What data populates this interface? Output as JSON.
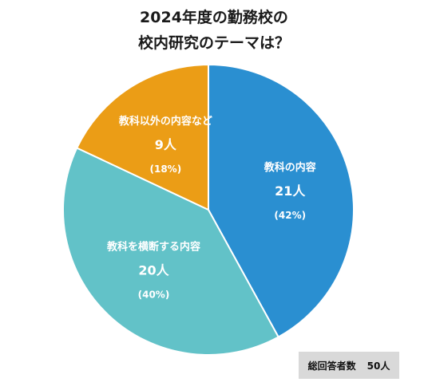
{
  "chart_data": {
    "type": "pie",
    "title": [
      "2024年度の勤務校の",
      "校内研究のテーマは？"
    ],
    "slices": [
      {
        "label": "教科の内容",
        "count": "21人",
        "percent_label": "(42%)",
        "value": 42,
        "color": "#2a8fd1"
      },
      {
        "label": "教科を横断する内容",
        "count": "20人",
        "percent_label": "(40%)",
        "value": 40,
        "color": "#62c2c8"
      },
      {
        "label": "教科以外の内容など",
        "count": "9人",
        "percent_label": "(18%)",
        "value": 18,
        "color": "#eb9d16"
      }
    ],
    "legend": "none"
  },
  "total": {
    "label": "総回答者数",
    "value": "50人"
  },
  "colors": {
    "border": "#ffffff",
    "total_box": "#d9d9d9"
  }
}
